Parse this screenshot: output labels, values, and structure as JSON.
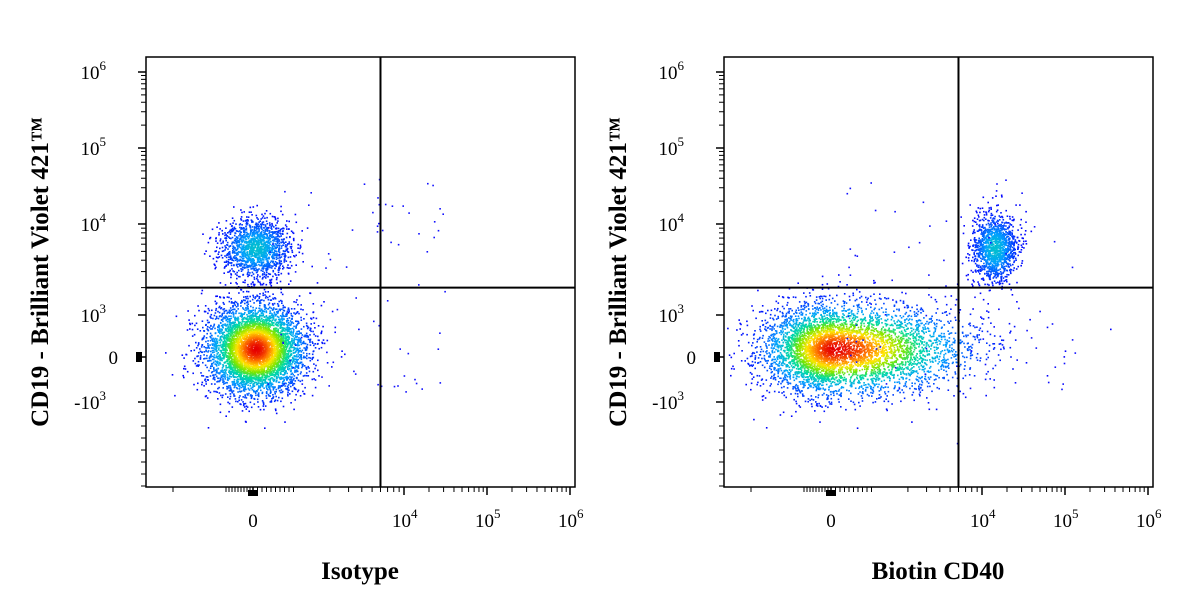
{
  "chart_data": [
    {
      "type": "scatter",
      "subtype": "flow-cytometry-density-plot",
      "xlabel": "Isotype",
      "ylabel": "CD19 - Brilliant Violet 421™",
      "x_scale": "biexponential",
      "y_scale": "biexponential",
      "x_ticks": [
        {
          "value": 0,
          "base": "0",
          "exp": ""
        },
        {
          "value": 10000,
          "base": "10",
          "exp": "4"
        },
        {
          "value": 100000,
          "base": "10",
          "exp": "5"
        },
        {
          "value": 1000000,
          "base": "10",
          "exp": "6"
        }
      ],
      "y_ticks": [
        {
          "value": 1000000,
          "base": "10",
          "exp": "6"
        },
        {
          "value": 100000,
          "base": "10",
          "exp": "5"
        },
        {
          "value": 10000,
          "base": "10",
          "exp": "4"
        },
        {
          "value": 1000,
          "base": "10",
          "exp": "3"
        },
        {
          "value": 0,
          "base": "0",
          "exp": ""
        },
        {
          "value": -1000,
          "base": "-10",
          "exp": "3"
        }
      ],
      "quadrant_gate": {
        "x": 6000,
        "y": 2000
      },
      "populations": [
        {
          "name": "",
          "center": {
            "x": 50,
            "y": 200
          },
          "relative_density": 1.0,
          "quadrant": "lower-left"
        },
        {
          "name": "",
          "center": {
            "x": 50,
            "y": 5500
          },
          "relative_density": 0.35,
          "quadrant": "upper-left"
        }
      ],
      "grid": false
    },
    {
      "type": "scatter",
      "subtype": "flow-cytometry-density-plot",
      "xlabel": "Biotin CD40",
      "ylabel": "CD19 - Brilliant Violet 421™",
      "x_scale": "biexponential",
      "y_scale": "biexponential",
      "x_ticks": [
        {
          "value": 0,
          "base": "0",
          "exp": ""
        },
        {
          "value": 10000,
          "base": "10",
          "exp": "4"
        },
        {
          "value": 100000,
          "base": "10",
          "exp": "5"
        },
        {
          "value": 1000000,
          "base": "10",
          "exp": "6"
        }
      ],
      "y_ticks": [
        {
          "value": 1000000,
          "base": "10",
          "exp": "6"
        },
        {
          "value": 100000,
          "base": "10",
          "exp": "5"
        },
        {
          "value": 10000,
          "base": "10",
          "exp": "4"
        },
        {
          "value": 1000,
          "base": "10",
          "exp": "3"
        },
        {
          "value": 0,
          "base": "0",
          "exp": ""
        },
        {
          "value": -1000,
          "base": "-10",
          "exp": "3"
        }
      ],
      "quadrant_gate": {
        "x": 6000,
        "y": 2000
      },
      "populations": [
        {
          "name": "",
          "center": {
            "x": 50,
            "y": 200
          },
          "relative_density": 1.0,
          "quadrant": "lower-left"
        },
        {
          "name": "",
          "center": {
            "x": 14000,
            "y": 5500
          },
          "relative_density": 0.35,
          "quadrant": "upper-right"
        }
      ],
      "grid": false
    }
  ]
}
